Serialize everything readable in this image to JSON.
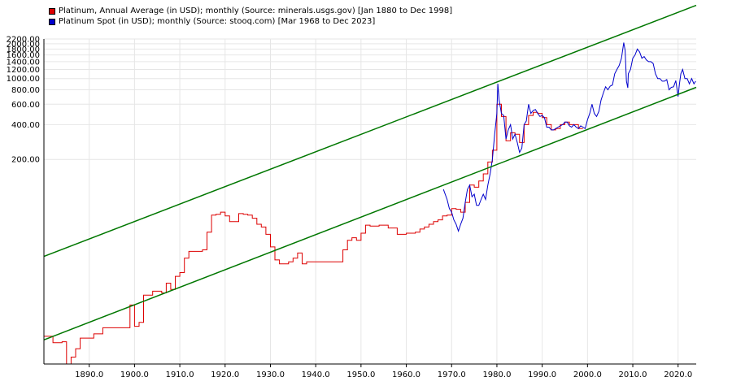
{
  "legend": [
    {
      "label": "Platinum, Annual Average (in USD); monthly (Source: minerals.usgs.gov) [Jan 1880 to Dec 1998]",
      "color": "#dd0000"
    },
    {
      "label": "Platinum Spot (in USD); monthly (Source: stooq.com) [Mar 1968 to Dec 2023]",
      "color": "#0000cc"
    }
  ],
  "chart_data": {
    "type": "line",
    "title": "",
    "xlabel": "",
    "ylabel": "",
    "y_scale": "log",
    "xlim": [
      1880,
      2024
    ],
    "ylim": [
      3.4,
      2200
    ],
    "grid": true,
    "legend_position": "top-left",
    "x_ticks": [
      "1890.0",
      "1900.0",
      "1910.0",
      "1920.0",
      "1930.0",
      "1940.0",
      "1950.0",
      "1960.0",
      "1970.0",
      "1980.0",
      "1990.0",
      "2000.0",
      "2010.0",
      "2020.0"
    ],
    "x_tick_values": [
      1890,
      1900,
      1910,
      1920,
      1930,
      1940,
      1950,
      1960,
      1970,
      1980,
      1990,
      2000,
      2010,
      2020
    ],
    "y_ticks": [
      "200.00",
      "400.00",
      "600.00",
      "800.00",
      "1000.00",
      "1200.00",
      "1400.00",
      "1600.00",
      "1800.00",
      "2000.00",
      "2200.00"
    ],
    "y_tick_values": [
      200,
      400,
      600,
      800,
      1000,
      1200,
      1400,
      1600,
      1800,
      2000,
      2200
    ],
    "series": [
      {
        "name": "Platinum, Annual Average (in USD); monthly (Source: minerals.usgs.gov) [Jan 1880 to Dec 1998]",
        "color": "#dd0000",
        "step": true,
        "x": [
          1880,
          1882,
          1884,
          1885,
          1886,
          1887,
          1888,
          1890,
          1891,
          1893,
          1895,
          1896,
          1897,
          1898,
          1899,
          1900,
          1901,
          1902,
          1903,
          1904,
          1905,
          1906,
          1907,
          1908,
          1909,
          1910,
          1911,
          1912,
          1913,
          1914,
          1915,
          1916,
          1917,
          1918,
          1919,
          1920,
          1921,
          1922,
          1923,
          1924,
          1925,
          1926,
          1927,
          1928,
          1929,
          1930,
          1931,
          1932,
          1933,
          1934,
          1935,
          1936,
          1937,
          1938,
          1939,
          1940,
          1941,
          1942,
          1943,
          1944,
          1945,
          1946,
          1947,
          1948,
          1949,
          1950,
          1951,
          1952,
          1953,
          1954,
          1955,
          1956,
          1957,
          1958,
          1959,
          1960,
          1961,
          1962,
          1963,
          1964,
          1965,
          1966,
          1967,
          1968,
          1969,
          1970,
          1971,
          1972,
          1973,
          1974,
          1975,
          1976,
          1977,
          1978,
          1979,
          1980,
          1981,
          1982,
          1983,
          1984,
          1985,
          1986,
          1987,
          1988,
          1989,
          1990,
          1991,
          1992,
          1993,
          1994,
          1995,
          1996,
          1997,
          1998
        ],
        "values": [
          5.9,
          5.2,
          5.3,
          3.2,
          3.9,
          4.6,
          5.7,
          5.7,
          6.2,
          7,
          7,
          7,
          7,
          7,
          11,
          7.2,
          7.8,
          13.4,
          13.4,
          14.5,
          14.5,
          14,
          17,
          15,
          19.5,
          21,
          28,
          32,
          32,
          32,
          33,
          47,
          66,
          67,
          70,
          65,
          58,
          58,
          68,
          67,
          66,
          62,
          55,
          52,
          45,
          35,
          27,
          25,
          25,
          26,
          28,
          31,
          25,
          26,
          26,
          26,
          26,
          26,
          26,
          26,
          26,
          33,
          40,
          42,
          40,
          46,
          54,
          53,
          53,
          54,
          54,
          51,
          51,
          45,
          45,
          46,
          46,
          47,
          50,
          52,
          55,
          58,
          60,
          65,
          66,
          75,
          74,
          70,
          85,
          120,
          115,
          130,
          150,
          190,
          240,
          600,
          470,
          290,
          340,
          330,
          280,
          400,
          480,
          510,
          500,
          460,
          400,
          360,
          370,
          400,
          420,
          400,
          400,
          370
        ]
      },
      {
        "name": "Platinum Spot (in USD); monthly (Source: stooq.com) [Mar 1968 to Dec 2023]",
        "color": "#0000cc",
        "step": false,
        "x": [
          1968.2,
          1969,
          1969.5,
          1970,
          1970.5,
          1971,
          1971.5,
          1972,
          1972.5,
          1973,
          1973.5,
          1974,
          1974.5,
          1975,
          1975.5,
          1976,
          1976.5,
          1977,
          1977.5,
          1978,
          1978.5,
          1979,
          1979.5,
          1980,
          1980.2,
          1980.5,
          1981,
          1981.5,
          1982,
          1982.5,
          1983,
          1983.5,
          1984,
          1984.5,
          1985,
          1985.5,
          1986,
          1986.5,
          1987,
          1987.5,
          1988,
          1988.5,
          1989,
          1989.5,
          1990,
          1990.5,
          1991,
          1991.5,
          1992,
          1992.5,
          1993,
          1993.5,
          1994,
          1994.5,
          1995,
          1995.5,
          1996,
          1996.5,
          1997,
          1997.5,
          1998,
          1998.5,
          1999,
          1999.5,
          2000,
          2000.5,
          2001,
          2001.5,
          2002,
          2002.5,
          2003,
          2003.5,
          2004,
          2004.5,
          2005,
          2005.5,
          2006,
          2006.5,
          2007,
          2007.5,
          2008,
          2008.3,
          2008.6,
          2008.9,
          2009,
          2009.5,
          2010,
          2010.5,
          2011,
          2011.5,
          2012,
          2012.5,
          2013,
          2013.5,
          2014,
          2014.5,
          2015,
          2015.5,
          2016,
          2016.5,
          2017,
          2017.5,
          2018,
          2018.5,
          2019,
          2019.5,
          2020,
          2020.3,
          2020.6,
          2021,
          2021.5,
          2022,
          2022.5,
          2023,
          2023.5,
          2023.9
        ],
        "values": [
          110,
          90,
          75,
          70,
          60,
          55,
          48,
          55,
          62,
          85,
          110,
          120,
          95,
          100,
          80,
          80,
          90,
          100,
          90,
          120,
          150,
          200,
          330,
          500,
          900,
          650,
          500,
          480,
          300,
          360,
          400,
          300,
          330,
          280,
          230,
          250,
          400,
          430,
          600,
          500,
          530,
          540,
          500,
          470,
          480,
          460,
          380,
          380,
          360,
          360,
          370,
          380,
          390,
          400,
          420,
          420,
          390,
          380,
          400,
          380,
          370,
          390,
          380,
          370,
          440,
          500,
          600,
          500,
          470,
          520,
          650,
          750,
          850,
          800,
          860,
          880,
          1100,
          1200,
          1300,
          1500,
          2050,
          1750,
          950,
          830,
          1100,
          1200,
          1500,
          1600,
          1800,
          1700,
          1500,
          1550,
          1450,
          1400,
          1400,
          1350,
          1100,
          1000,
          1000,
          950,
          950,
          980,
          800,
          840,
          850,
          960,
          700,
          900,
          1100,
          1200,
          1000,
          1000,
          900,
          1000,
          900,
          950
        ]
      }
    ],
    "channel_lines": [
      {
        "color": "#007700",
        "x": [
          1880,
          2024
        ],
        "values": [
          29,
          4300
        ]
      },
      {
        "color": "#007700",
        "x": [
          1880,
          2024
        ],
        "values": [
          5.5,
          840
        ]
      }
    ]
  }
}
